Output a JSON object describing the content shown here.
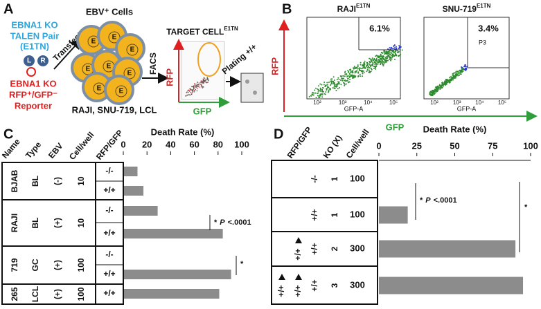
{
  "panel_a": {
    "label": "A",
    "talen": [
      "EBNA1 KO",
      "TALEN Pair",
      "(E1TN)"
    ],
    "talen_arms": [
      "L",
      "R"
    ],
    "reporter": [
      "EBNA1 KO",
      "RFP⁺/GFP⁻",
      "Reporter"
    ],
    "transfect": "Transfect",
    "cells_title": "EBV⁺ Cells",
    "cell_mark": "E",
    "cell_lines": "RAJI, SNU-719, LCL",
    "facs": "FACS",
    "target": "TARGET CELL",
    "target_sup": "E1TN",
    "y_axis": "RFP",
    "x_axis": "GFP",
    "plating": "Plating +/+"
  },
  "panel_b": {
    "label": "B",
    "y_axis": "RFP",
    "x_axis": "GFP",
    "plots": [
      {
        "title": "RAJI",
        "title_sup": "E1TN",
        "gate": "6.1%",
        "x_label": "GFP-A",
        "xticks": [
          "10²",
          "10³",
          "10⁴",
          "10⁵"
        ]
      },
      {
        "title": "SNU-719",
        "title_sup": "E1TN",
        "gate": "3.4%",
        "gate_name": "P3",
        "x_label": "GFP-A",
        "xticks": [
          "10²",
          "10³",
          "10⁴",
          "10⁵"
        ]
      }
    ]
  },
  "chart_data": [
    {
      "type": "bar",
      "orientation": "horizontal",
      "panel": "C",
      "x_label": "Death Rate (%)",
      "xlim": [
        0,
        100
      ],
      "xticks": [
        0,
        20,
        40,
        60,
        80,
        100
      ],
      "color": "#8c8c8c",
      "table": {
        "headers": [
          "Name",
          "Type",
          "EBV",
          "Cell/well",
          "RFP/GFP"
        ],
        "groups": [
          [
            "BJAB",
            "BL",
            "(-)",
            "10"
          ],
          [
            "RAJI",
            "BL",
            "(+)",
            "10"
          ],
          [
            "719",
            "GC",
            "(+)",
            "100"
          ],
          [
            "265",
            "LCL",
            "(+)",
            "100"
          ]
        ]
      },
      "categories": [
        "-/-",
        "+/+",
        "-/-",
        "+/+",
        "-/-",
        "+/+",
        "+/+"
      ],
      "values": [
        12,
        17,
        29,
        84,
        null,
        91,
        81
      ],
      "annotations": [
        [
          "*",
          "P",
          "<.0001"
        ],
        [
          "*"
        ]
      ]
    },
    {
      "type": "bar",
      "orientation": "horizontal",
      "panel": "D",
      "x_label": "Death Rate (%)",
      "xlim": [
        0,
        100
      ],
      "xticks": [
        0,
        25,
        50,
        75,
        100
      ],
      "color": "#8c8c8c",
      "table": {
        "headers": [
          "RFP/GFP",
          "KO (X)",
          "Cell/well"
        ],
        "rows": [
          {
            "rfp_gfp": [
              "-/-"
            ],
            "ko": "1",
            "cell_well": "100"
          },
          {
            "rfp_gfp": [
              "+/+"
            ],
            "ko": "1",
            "cell_well": "100"
          },
          {
            "rfp_gfp": [
              "+/+",
              "+/+"
            ],
            "ko": "2",
            "cell_well": "300"
          },
          {
            "rfp_gfp": [
              "+/+",
              "+/+",
              "+/+"
            ],
            "ko": "3",
            "cell_well": "300"
          }
        ]
      },
      "values": [
        null,
        19,
        90,
        95
      ],
      "annotations": [
        [
          "*",
          "P",
          "<.0001"
        ],
        [
          "*"
        ]
      ]
    }
  ]
}
